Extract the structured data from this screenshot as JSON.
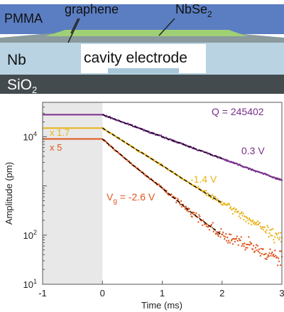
{
  "colors": {
    "pmma": "#5b7ec2",
    "graphene": "#9fd076",
    "nbse2_strip": "#8a9a9d",
    "nb": "#b9d3e2",
    "cavity": "#ffffff",
    "electrode": "#a8c7d8",
    "sio2": "#434b4f",
    "purple": "#7a2e8c",
    "yellow": "#e8b31a",
    "orange": "#e0551c",
    "fit": "#000000",
    "shade": "#e8e8e8"
  },
  "schematic": {
    "pmma_label": "PMMA",
    "graphene_label": "graphene",
    "nbse2_main": "NbSe",
    "nbse2_sub": "2",
    "nb_label": "Nb",
    "cavity_label": "cavity electrode",
    "sio2_main": "SiO",
    "sio2_sub": "2"
  },
  "chart_data": {
    "type": "line",
    "xlabel": "Time (ms)",
    "ylabel": "Amplitude (pm)",
    "xlim": [
      -1,
      3
    ],
    "ylim": [
      10,
      50000
    ],
    "y_scale": "log",
    "x_ticks": [
      {
        "value": -1,
        "label": "-1"
      },
      {
        "value": 0,
        "label": "0"
      },
      {
        "value": 1,
        "label": "1"
      },
      {
        "value": 2,
        "label": "2"
      },
      {
        "value": 3,
        "label": "3"
      }
    ],
    "y_ticks": [
      {
        "value": 10,
        "label_main": "10",
        "label_exp": "1"
      },
      {
        "value": 100,
        "label_main": "10",
        "label_exp": "2"
      },
      {
        "value": 10000,
        "label_main": "10",
        "label_exp": "4"
      }
    ],
    "shaded_x_range": [
      -1,
      0
    ],
    "series": [
      {
        "key": "purple",
        "color": "#7a2e8c",
        "x": [
          -1,
          0,
          0.5,
          1,
          1.5,
          2,
          2.5,
          3
        ],
        "y": [
          28000,
          28000,
          16750,
          10000,
          6000,
          3600,
          2150,
          1300
        ]
      },
      {
        "key": "yellow",
        "color": "#e8b31a",
        "x": [
          -1,
          0,
          0.5,
          1,
          1.5,
          2,
          2.5,
          3
        ],
        "y": [
          15000,
          15000,
          6200,
          2600,
          1050,
          450,
          190,
          80
        ]
      },
      {
        "key": "orange",
        "color": "#e0551c",
        "x": [
          -1,
          0,
          0.5,
          1,
          1.5,
          2,
          2.5,
          3
        ],
        "y": [
          9000,
          9000,
          2700,
          900,
          280,
          100,
          55,
          35
        ]
      }
    ],
    "annotations": {
      "q_label": "Q = 245402",
      "purple_voltage": "0.3 V",
      "yellow_voltage": "-1.4 V",
      "orange_v": "V",
      "orange_sub": "g",
      "orange_value": " = -2.6 V",
      "yellow_scale": "x 1.7",
      "orange_scale": "x 5"
    }
  }
}
